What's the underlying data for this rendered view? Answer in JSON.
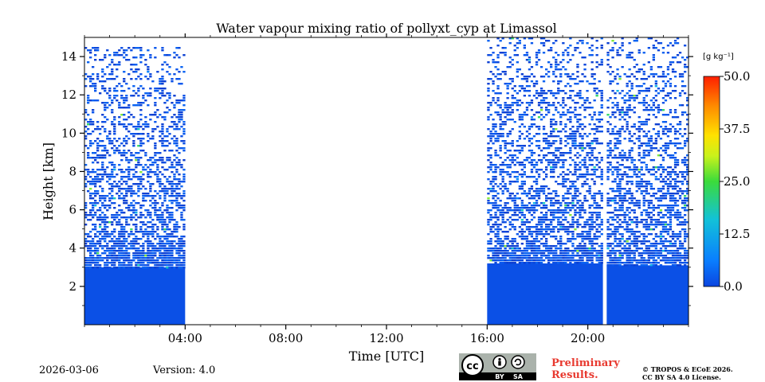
{
  "chart_data": {
    "type": "heatmap",
    "title": "Water vapour mixing ratio of pollyxt_cyp at Limassol",
    "xlabel": "Time [UTC]",
    "ylabel": "Height [km]",
    "x_unit": "hours UTC",
    "xlim": [
      0,
      24
    ],
    "ylim": [
      0,
      15
    ],
    "x_tick_values": [
      4,
      8,
      12,
      16,
      20
    ],
    "x_tick_labels": [
      "04:00",
      "08:00",
      "12:00",
      "16:00",
      "20:00"
    ],
    "y_tick_values": [
      2,
      4,
      6,
      8,
      10,
      12,
      14
    ],
    "y_tick_labels": [
      "2",
      "4",
      "6",
      "8",
      "10",
      "12",
      "14"
    ],
    "data_segments": [
      {
        "start": 0.0,
        "end": 4.0,
        "dense_top_km": 3.0,
        "mid_top_km": 4.5,
        "noise_top_km": 14.5
      },
      {
        "start": 16.0,
        "end": 20.6,
        "dense_top_km": 3.2,
        "mid_top_km": 4.0,
        "noise_top_km": 15.0
      },
      {
        "start": 20.75,
        "end": 24.0,
        "dense_top_km": 3.1,
        "mid_top_km": 4.0,
        "noise_top_km": 15.0
      }
    ],
    "dominant_value": 2.5,
    "colorbar": {
      "label": "[g kg⁻¹]",
      "min": 0.0,
      "max": 50.0,
      "tick_values": [
        0,
        12.5,
        25,
        37.5,
        50
      ],
      "tick_labels": [
        "0.0",
        "12.5",
        "25.0",
        "37.5",
        "50.0"
      ],
      "colormap": "jet"
    }
  },
  "footer": {
    "date": "2026-03-06",
    "version": "Version: 4.0",
    "preliminary_line1": "Preliminary",
    "preliminary_line2": "Results.",
    "copyright_line1": "© TROPOS & ECoE 2026.",
    "copyright_line2": "CC BY SA 4.0 License.",
    "license_badge": {
      "cc": "cc",
      "by": "BY",
      "sa": "SA"
    }
  },
  "colors": {
    "prelim": "#e8392f",
    "dense": "#0b50e6"
  }
}
